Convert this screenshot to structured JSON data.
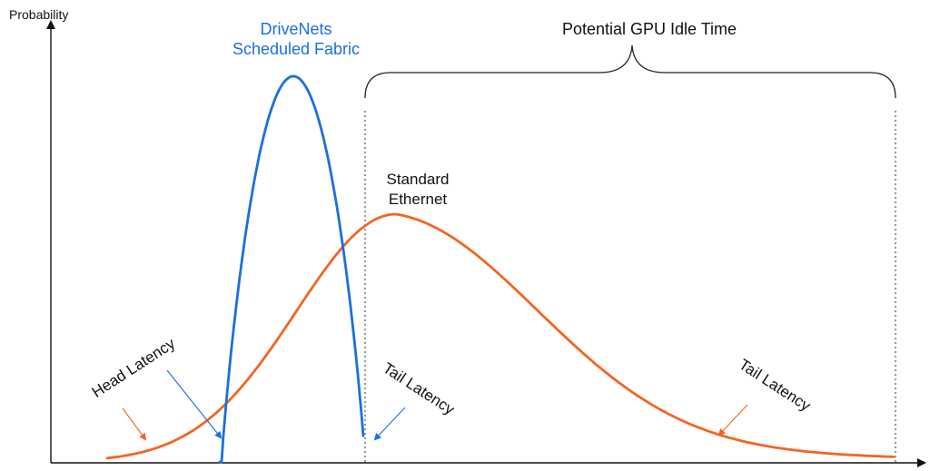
{
  "chart_data": {
    "type": "line",
    "ylabel": "Probability",
    "xlabel": "",
    "series": [
      {
        "name": "DriveNets Scheduled Fabric",
        "color": "#1a6fe0",
        "shape": "narrow-peak"
      },
      {
        "name": "Standard Ethernet",
        "color": "#f26522",
        "shape": "wide-skewed-peak"
      }
    ],
    "annotations": {
      "series_label_blue_line1": "DriveNets",
      "series_label_blue_line2": "Scheduled Fabric",
      "series_label_orange_line1": "Standard",
      "series_label_orange_line2": "Ethernet",
      "idle_time": "Potential GPU Idle Time",
      "head_latency": "Head Latency",
      "tail_latency_blue": "Tail Latency",
      "tail_latency_orange": "Tail Latency"
    },
    "grid": false,
    "legend": "none"
  },
  "colors": {
    "blue": "#1a6fe0",
    "orange": "#f26522",
    "axis": "#111111",
    "dotted": "#999999"
  }
}
